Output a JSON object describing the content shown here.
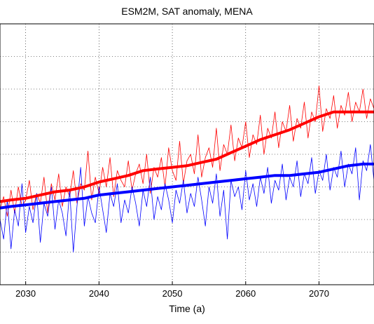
{
  "chart_data": {
    "type": "line",
    "title": "ESM2M, SAT anomaly, MENA",
    "xlabel": "Time (a)",
    "ylabel": "",
    "xlim": [
      2026.5,
      2077.5
    ],
    "ylim": [
      0,
      8
    ],
    "x_ticks": [
      2030,
      2040,
      2050,
      2060,
      2070
    ],
    "y_grid_values": [
      1,
      2,
      3,
      4,
      5,
      6,
      7
    ],
    "grid": true,
    "series": [
      {
        "color": "#ff0000",
        "style": "thin-noisy",
        "x": [
          2026.5,
          2027,
          2027.5,
          2028,
          2028.5,
          2029,
          2029.5,
          2030,
          2030.5,
          2031,
          2031.5,
          2032,
          2032.5,
          2033,
          2033.5,
          2034,
          2034.5,
          2035,
          2035.5,
          2036,
          2036.5,
          2037,
          2037.5,
          2038,
          2038.5,
          2039,
          2039.5,
          2040,
          2040.5,
          2041,
          2041.5,
          2042,
          2042.5,
          2043,
          2043.5,
          2044,
          2044.5,
          2045,
          2045.5,
          2046,
          2046.5,
          2047,
          2047.5,
          2048,
          2048.5,
          2049,
          2049.5,
          2050,
          2050.5,
          2051,
          2051.5,
          2052,
          2052.5,
          2053,
          2053.5,
          2054,
          2054.5,
          2055,
          2055.5,
          2056,
          2056.5,
          2057,
          2057.5,
          2058,
          2058.5,
          2059,
          2059.5,
          2060,
          2060.5,
          2061,
          2061.5,
          2062,
          2062.5,
          2063,
          2063.5,
          2064,
          2064.5,
          2065,
          2065.5,
          2066,
          2066.5,
          2067,
          2067.5,
          2068,
          2068.5,
          2069,
          2069.5,
          2070,
          2070.5,
          2071,
          2071.5,
          2072,
          2072.5,
          2073,
          2073.5,
          2074,
          2074.5,
          2075,
          2075.5,
          2076,
          2076.5,
          2077,
          2077.5
        ],
        "y": [
          2.3,
          2.7,
          2.1,
          2.9,
          2.2,
          3.0,
          2.4,
          2.6,
          3.2,
          2.3,
          2.8,
          2.5,
          3.3,
          2.2,
          3.1,
          2.6,
          3.4,
          2.4,
          3.0,
          2.7,
          3.5,
          2.5,
          3.1,
          2.9,
          4.1,
          2.6,
          3.3,
          2.8,
          3.6,
          3.0,
          3.9,
          2.7,
          3.5,
          3.2,
          3.0,
          3.8,
          2.9,
          3.4,
          3.7,
          3.1,
          4.0,
          2.8,
          3.6,
          3.3,
          3.9,
          3.0,
          4.2,
          3.5,
          3.2,
          4.4,
          3.1,
          3.8,
          4.0,
          3.4,
          4.6,
          3.3,
          3.9,
          4.2,
          3.6,
          4.8,
          3.5,
          4.3,
          4.0,
          4.9,
          3.8,
          4.5,
          4.2,
          5.0,
          3.9,
          4.6,
          4.3,
          5.2,
          4.0,
          4.8,
          4.5,
          5.3,
          4.2,
          5.0,
          4.7,
          5.5,
          4.4,
          5.1,
          4.8,
          5.6,
          4.5,
          5.3,
          5.0,
          6.1,
          4.7,
          5.4,
          5.1,
          5.8,
          4.8,
          5.5,
          5.2,
          5.9,
          5.0,
          5.6,
          5.3,
          6.0,
          5.1,
          5.7,
          5.4
        ]
      },
      {
        "color": "#0000ff",
        "style": "thin-noisy",
        "x": [
          2026.5,
          2027,
          2027.5,
          2028,
          2028.5,
          2029,
          2029.5,
          2030,
          2030.5,
          2031,
          2031.5,
          2032,
          2032.5,
          2033,
          2033.5,
          2034,
          2034.5,
          2035,
          2035.5,
          2036,
          2036.5,
          2037,
          2037.5,
          2038,
          2038.5,
          2039,
          2039.5,
          2040,
          2040.5,
          2041,
          2041.5,
          2042,
          2042.5,
          2043,
          2043.5,
          2044,
          2044.5,
          2045,
          2045.5,
          2046,
          2046.5,
          2047,
          2047.5,
          2048,
          2048.5,
          2049,
          2049.5,
          2050,
          2050.5,
          2051,
          2051.5,
          2052,
          2052.5,
          2053,
          2053.5,
          2054,
          2054.5,
          2055,
          2055.5,
          2056,
          2056.5,
          2057,
          2057.5,
          2058,
          2058.5,
          2059,
          2059.5,
          2060,
          2060.5,
          2061,
          2061.5,
          2062,
          2062.5,
          2063,
          2063.5,
          2064,
          2064.5,
          2065,
          2065.5,
          2066,
          2066.5,
          2067,
          2067.5,
          2068,
          2068.5,
          2069,
          2069.5,
          2070,
          2070.5,
          2071,
          2071.5,
          2072,
          2072.5,
          2073,
          2073.5,
          2074,
          2074.5,
          2075,
          2075.5,
          2076,
          2076.5,
          2077,
          2077.5
        ],
        "y": [
          2.0,
          1.4,
          2.6,
          1.1,
          2.3,
          1.8,
          3.1,
          1.6,
          2.4,
          1.9,
          2.8,
          1.3,
          2.5,
          2.1,
          3.0,
          1.7,
          2.6,
          2.2,
          1.5,
          2.9,
          1.0,
          2.4,
          3.6,
          1.8,
          2.7,
          2.2,
          1.9,
          3.0,
          2.3,
          1.6,
          2.8,
          2.4,
          3.1,
          1.9,
          2.6,
          2.2,
          3.0,
          2.5,
          1.8,
          2.9,
          2.4,
          3.3,
          2.0,
          2.7,
          2.3,
          3.1,
          2.6,
          1.9,
          2.9,
          2.5,
          3.2,
          2.2,
          2.8,
          2.4,
          3.3,
          2.6,
          1.8,
          3.0,
          2.5,
          3.4,
          2.1,
          2.9,
          1.4,
          3.2,
          2.7,
          3.0,
          2.3,
          3.5,
          2.6,
          3.1,
          2.4,
          3.3,
          2.8,
          3.6,
          2.5,
          3.2,
          2.9,
          3.7,
          2.6,
          3.3,
          3.0,
          3.8,
          2.7,
          3.4,
          3.1,
          3.9,
          2.8,
          3.5,
          3.2,
          4.0,
          2.9,
          3.6,
          3.3,
          4.1,
          3.0,
          3.7,
          3.4,
          4.2,
          2.6,
          3.8,
          3.5,
          4.3,
          3.2
        ]
      },
      {
        "color": "#ff0000",
        "style": "thick-smoothed",
        "x": [
          2026.5,
          2028,
          2030,
          2032,
          2034,
          2036,
          2038,
          2040,
          2042,
          2044,
          2046,
          2048,
          2050,
          2052,
          2054,
          2056,
          2058,
          2060,
          2062,
          2064,
          2066,
          2068,
          2070,
          2072,
          2074,
          2076,
          2077.5
        ],
        "y": [
          2.55,
          2.6,
          2.65,
          2.75,
          2.85,
          2.9,
          3.0,
          3.15,
          3.25,
          3.35,
          3.5,
          3.55,
          3.6,
          3.65,
          3.75,
          3.85,
          4.05,
          4.25,
          4.45,
          4.6,
          4.75,
          4.95,
          5.15,
          5.3,
          5.3,
          5.3,
          5.3
        ]
      },
      {
        "color": "#0000ff",
        "style": "thick-smoothed",
        "x": [
          2026.5,
          2028,
          2030,
          2032,
          2034,
          2036,
          2038,
          2040,
          2042,
          2044,
          2046,
          2048,
          2050,
          2052,
          2054,
          2056,
          2058,
          2060,
          2062,
          2064,
          2066,
          2068,
          2070,
          2072,
          2074,
          2076,
          2077.5
        ],
        "y": [
          2.35,
          2.4,
          2.45,
          2.5,
          2.55,
          2.6,
          2.65,
          2.75,
          2.8,
          2.85,
          2.9,
          2.95,
          3.0,
          3.05,
          3.1,
          3.15,
          3.2,
          3.25,
          3.3,
          3.35,
          3.35,
          3.4,
          3.45,
          3.55,
          3.65,
          3.7,
          3.7
        ]
      }
    ]
  }
}
